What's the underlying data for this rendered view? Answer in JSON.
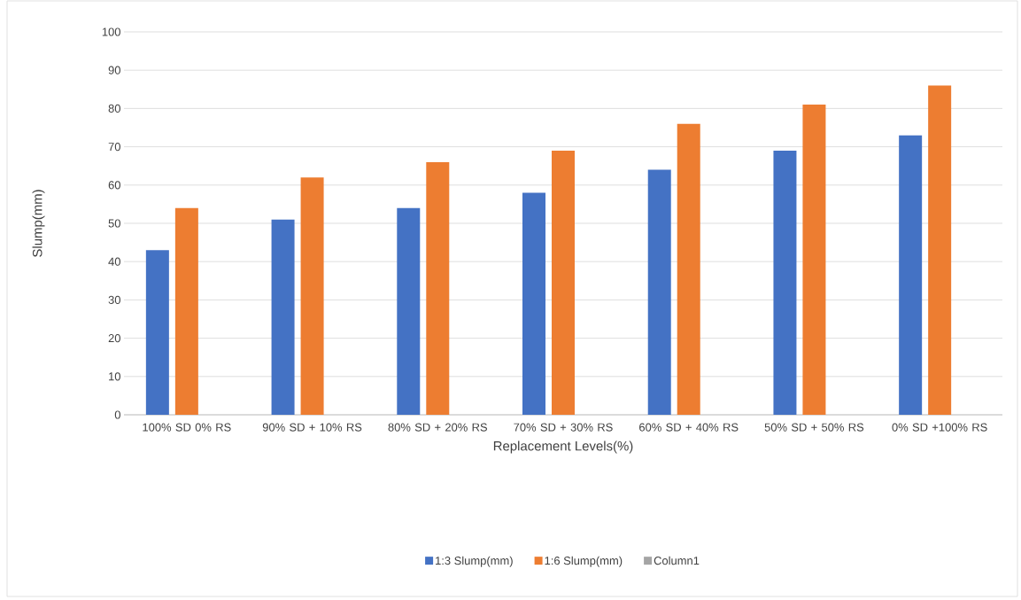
{
  "chart_data": {
    "type": "bar",
    "xlabel": "Replacement Levels(%)",
    "ylabel": "Slump(mm)",
    "categories": [
      "100% SD 0% RS",
      "90% SD + 10% RS",
      "80% SD + 20% RS",
      "70% SD + 30% RS",
      "60% SD + 40% RS",
      "50% SD + 50% RS",
      "0% SD +100% RS"
    ],
    "series": [
      {
        "name": "1:3 Slump(mm)",
        "color": "#4472c4",
        "values": [
          43,
          51,
          54,
          58,
          64,
          69,
          73
        ]
      },
      {
        "name": "1:6 Slump(mm)",
        "color": "#ed7d31",
        "values": [
          54,
          62,
          66,
          69,
          76,
          81,
          86
        ]
      },
      {
        "name": "Column1",
        "color": "#a5a5a5",
        "values": [
          null,
          null,
          null,
          null,
          null,
          null,
          null
        ]
      }
    ],
    "ylim": [
      0,
      100
    ],
    "yticks": [
      0,
      10,
      20,
      30,
      40,
      50,
      60,
      70,
      80,
      90,
      100
    ],
    "grid": "y",
    "legend": "bottom"
  }
}
